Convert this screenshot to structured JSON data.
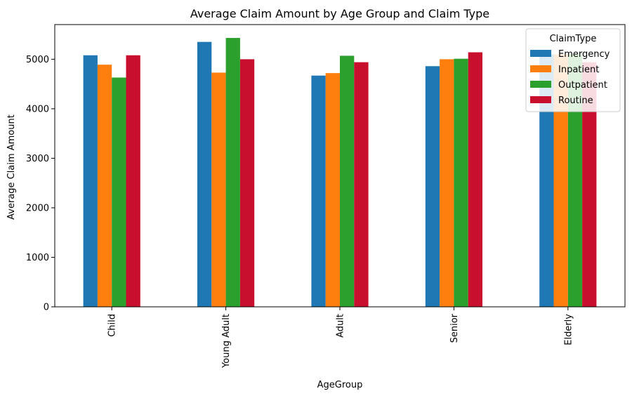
{
  "chart_data": {
    "type": "bar",
    "title": "Average Claim Amount by Age Group and Claim Type",
    "xlabel": "AgeGroup",
    "ylabel": "Average Claim Amount",
    "categories": [
      "Child",
      "Young Adult",
      "Adult",
      "Senior",
      "Elderly"
    ],
    "ylim": [
      0,
      5700
    ],
    "yticks": [
      0,
      1000,
      2000,
      3000,
      4000,
      5000
    ],
    "legend_title": "ClaimType",
    "legend_position": "top-right",
    "grid": false,
    "series": [
      {
        "name": "Emergency",
        "color": "#1f77b4",
        "values": [
          5080,
          5350,
          4670,
          4860,
          5100
        ]
      },
      {
        "name": "Inpatient",
        "color": "#ff7f0e",
        "values": [
          4890,
          4730,
          4720,
          5000,
          5100
        ]
      },
      {
        "name": "Outpatient",
        "color": "#2ca02c",
        "values": [
          4630,
          5430,
          5070,
          5010,
          5100
        ]
      },
      {
        "name": "Routine",
        "color": "#c8102e",
        "values": [
          5080,
          5000,
          4940,
          5140,
          4940
        ]
      }
    ]
  }
}
